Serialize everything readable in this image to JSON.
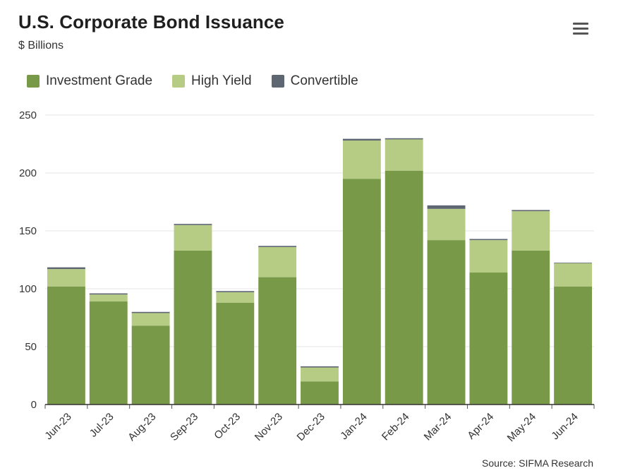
{
  "header": {
    "title": "U.S. Corporate Bond Issuance",
    "subtitle": "$ Billions"
  },
  "menu": {
    "icon": "hamburger-menu-icon"
  },
  "colors": {
    "investment_grade": "#789947",
    "high_yield": "#b6cc84",
    "convertible": "#5d6671",
    "gridline": "#e6e6e6",
    "axis": "#333333"
  },
  "legend": [
    {
      "label": "Investment Grade",
      "color": "#789947"
    },
    {
      "label": "High Yield",
      "color": "#b6cc84"
    },
    {
      "label": "Convertible",
      "color": "#5d6671"
    }
  ],
  "chart_data": {
    "type": "bar",
    "stacked": true,
    "title": "U.S. Corporate Bond Issuance",
    "subtitle": "$ Billions",
    "xlabel": "",
    "ylabel": "",
    "ylim": [
      0,
      250
    ],
    "yticks": [
      0,
      50,
      100,
      150,
      200,
      250
    ],
    "grid": true,
    "legend_position": "top-left",
    "categories": [
      "Jun-23",
      "Jul-23",
      "Aug-23",
      "Sep-23",
      "Oct-23",
      "Nov-23",
      "Dec-23",
      "Jan-24",
      "Feb-24",
      "Mar-24",
      "Apr-24",
      "May-24",
      "Jun-24"
    ],
    "series": [
      {
        "name": "Investment Grade",
        "color": "#789947",
        "values": [
          102,
          89,
          68,
          133,
          88,
          110,
          20,
          195,
          202,
          142,
          114,
          133,
          102
        ]
      },
      {
        "name": "High Yield",
        "color": "#b6cc84",
        "values": [
          15,
          6,
          11,
          22,
          9,
          26,
          12,
          33,
          27,
          27,
          28,
          34,
          20
        ]
      },
      {
        "name": "Convertible",
        "color": "#5d6671",
        "values": [
          1.5,
          1,
          1,
          1,
          1,
          1,
          1,
          1.5,
          1,
          3,
          1,
          1,
          0.5
        ]
      }
    ]
  },
  "source": "Source: SIFMA Research"
}
